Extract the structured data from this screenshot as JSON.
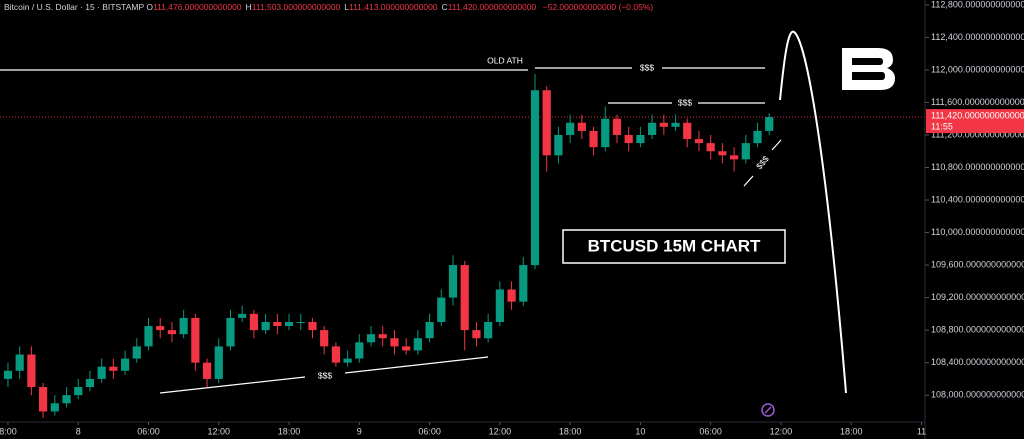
{
  "chart_data": {
    "type": "candlestick",
    "symbol": "Bitcoin / U.S. Dollar · 15 · BITSTAMP",
    "ohlc_header": [
      {
        "key": "O",
        "text": "111,476.000000000000"
      },
      {
        "key": "H",
        "text": "111,503.000000000000"
      },
      {
        "key": "L",
        "text": "111,413.000000000000"
      },
      {
        "key": "C",
        "text": "111,420.000000000000"
      }
    ],
    "change": "−52.000000000000 (−0.05%)",
    "annotations": [
      "OLD ATH",
      "$$$",
      "$$$",
      "$$$",
      "$$$",
      "BTCUSD 15M CHART"
    ],
    "up_color": "#089981",
    "down_color": "#f23645",
    "grid": false,
    "x": [
      0,
      1,
      2,
      3,
      4,
      5,
      6,
      7,
      8,
      9,
      10,
      11,
      12,
      13,
      14,
      15,
      16,
      17,
      18,
      19,
      20,
      21,
      22,
      23,
      24,
      25,
      26,
      27,
      28,
      29,
      30,
      31,
      32,
      33,
      34,
      35,
      36,
      37,
      38,
      39,
      40,
      41,
      42,
      43,
      44,
      45,
      46,
      47,
      48,
      49,
      50,
      51,
      52,
      53,
      54,
      55,
      56,
      57,
      58,
      59,
      60,
      61,
      62,
      63,
      64,
      65
    ],
    "open": [
      108200,
      108300,
      108500,
      108100,
      107800,
      107900,
      108000,
      108100,
      108200,
      108350,
      108300,
      108450,
      108600,
      108850,
      108800,
      108750,
      108950,
      108400,
      108200,
      108600,
      108950,
      109000,
      108800,
      108900,
      108850,
      108900,
      108900,
      108800,
      108600,
      108400,
      108450,
      108650,
      108750,
      108700,
      108600,
      108550,
      108700,
      108900,
      109200,
      109600,
      108800,
      108700,
      108900,
      109300,
      109150,
      109600,
      111750,
      110950,
      111200,
      111350,
      111250,
      111050,
      111400,
      111200,
      111100,
      111200,
      111350,
      111300,
      111350,
      111150,
      111100,
      111000,
      110950,
      110900,
      111100,
      111250
    ],
    "high": [
      108400,
      108600,
      108600,
      108150,
      108000,
      108100,
      108200,
      108300,
      108450,
      108450,
      108550,
      108700,
      108950,
      108950,
      108900,
      109050,
      109000,
      108450,
      108700,
      109050,
      109100,
      109050,
      109000,
      109000,
      109000,
      109000,
      108950,
      108850,
      108650,
      108550,
      108750,
      108850,
      108850,
      108800,
      108700,
      108800,
      109000,
      109300,
      109720,
      109650,
      108900,
      109000,
      109400,
      109400,
      109700,
      111950,
      111800,
      111300,
      111450,
      111450,
      111300,
      111550,
      111450,
      111300,
      111300,
      111450,
      111450,
      111450,
      111400,
      111250,
      111200,
      111100,
      111050,
      111200,
      111350,
      111470
    ],
    "low": [
      108100,
      108200,
      108000,
      107720,
      107750,
      107850,
      107950,
      108050,
      108150,
      108200,
      108250,
      108400,
      108550,
      108700,
      108650,
      108700,
      108300,
      108100,
      108150,
      108550,
      108900,
      108700,
      108750,
      108750,
      108800,
      108800,
      108700,
      108500,
      108350,
      108350,
      108400,
      108600,
      108600,
      108500,
      108500,
      108500,
      108650,
      108850,
      109100,
      108550,
      108600,
      108650,
      108850,
      109050,
      109100,
      109550,
      110750,
      110850,
      111100,
      111150,
      110950,
      111000,
      111100,
      111000,
      111050,
      111150,
      111200,
      111250,
      111050,
      111000,
      110900,
      110850,
      110750,
      110850,
      111050,
      111200
    ],
    "close": [
      108300,
      108500,
      108100,
      107800,
      107900,
      108000,
      108100,
      108200,
      108350,
      108300,
      108450,
      108600,
      108850,
      108800,
      108750,
      108950,
      108400,
      108200,
      108600,
      108950,
      109000,
      108800,
      108900,
      108850,
      108900,
      108900,
      108800,
      108600,
      108400,
      108450,
      108650,
      108750,
      108700,
      108600,
      108550,
      108700,
      108900,
      109200,
      109600,
      108800,
      108700,
      108900,
      109300,
      109150,
      109600,
      111750,
      110950,
      111200,
      111350,
      111250,
      111050,
      111400,
      111200,
      111100,
      111200,
      111350,
      111300,
      111350,
      111150,
      111100,
      111000,
      110950,
      110900,
      111100,
      111250,
      111420
    ],
    "last_price": {
      "value": 111420,
      "label": "111,420.000000000000"
    },
    "countdown": "11:55",
    "xlim": [
      -0.68,
      78.3
    ],
    "xticks": [
      {
        "value": 0,
        "label": "8:00"
      },
      {
        "value": 6,
        "label": "8"
      },
      {
        "value": 12,
        "label": "06:00"
      },
      {
        "value": 18,
        "label": "12:00"
      },
      {
        "value": 24,
        "label": "18:00"
      },
      {
        "value": 30,
        "label": "9"
      },
      {
        "value": 36,
        "label": "06:00"
      },
      {
        "value": 42,
        "label": "12:00"
      },
      {
        "value": 48,
        "label": "18:00"
      },
      {
        "value": 54,
        "label": "10"
      },
      {
        "value": 60,
        "label": "06:00"
      },
      {
        "value": 66,
        "label": "12:00"
      },
      {
        "value": 72,
        "label": "18:00"
      },
      {
        "value": 78,
        "label": "11"
      }
    ],
    "ylim": [
      107670,
      112860
    ],
    "yticks": [
      {
        "value": 108000,
        "label": "108,000.000000000000"
      },
      {
        "value": 108400,
        "label": "108,400.000000000000"
      },
      {
        "value": 108800,
        "label": "108,800.000000000000"
      },
      {
        "value": 109200,
        "label": "109,200.000000000000"
      },
      {
        "value": 109600,
        "label": "109,600.000000000000"
      },
      {
        "value": 110000,
        "label": "110,000.000000000000"
      },
      {
        "value": 110400,
        "label": "110,400.000000000000"
      },
      {
        "value": 110800,
        "label": "110,800.000000000000"
      },
      {
        "value": 111200,
        "label": "111,200.000000000000"
      },
      {
        "value": 111600,
        "label": "111,600.000000000000"
      },
      {
        "value": 112000,
        "label": "112,000.000000000000"
      },
      {
        "value": 112400,
        "label": "112,400.000000000000"
      },
      {
        "value": 112800,
        "label": "112,800.000000000000"
      }
    ]
  }
}
